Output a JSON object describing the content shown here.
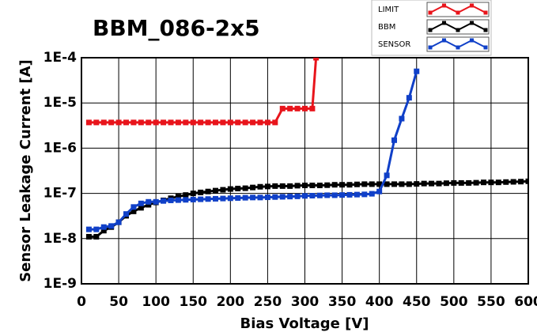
{
  "chart_data": {
    "type": "line",
    "title": "BBM_086-2x5",
    "x_label": "Bias Voltage [V]",
    "y_label": "Sensor Leakage Current [A]",
    "log_y": true,
    "grid": true,
    "legend": "top-right",
    "xlim": [
      0,
      600
    ],
    "xticks": [
      0,
      50,
      100,
      150,
      200,
      250,
      300,
      350,
      400,
      450,
      500,
      550,
      600
    ],
    "ylim": [
      1e-09,
      0.0001
    ],
    "yticks": [
      {
        "value": 1e-09,
        "label": "1E-9"
      },
      {
        "value": 1e-08,
        "label": "1E-8"
      },
      {
        "value": 1e-07,
        "label": "1E-7"
      },
      {
        "value": 1e-06,
        "label": "1E-6"
      },
      {
        "value": 1e-05,
        "label": "1E-5"
      },
      {
        "value": 0.0001,
        "label": "1E-4"
      }
    ],
    "series": [
      {
        "name": "LIMIT",
        "color": "#e8141b",
        "x": [
          10,
          20,
          30,
          40,
          50,
          60,
          70,
          80,
          90,
          100,
          110,
          120,
          130,
          140,
          150,
          160,
          170,
          180,
          190,
          200,
          210,
          220,
          230,
          240,
          250,
          260,
          270,
          280,
          290,
          300,
          310,
          315
        ],
        "values": [
          3.7e-06,
          3.7e-06,
          3.7e-06,
          3.7e-06,
          3.7e-06,
          3.7e-06,
          3.7e-06,
          3.7e-06,
          3.7e-06,
          3.7e-06,
          3.7e-06,
          3.7e-06,
          3.7e-06,
          3.7e-06,
          3.7e-06,
          3.7e-06,
          3.7e-06,
          3.7e-06,
          3.7e-06,
          3.7e-06,
          3.7e-06,
          3.7e-06,
          3.7e-06,
          3.7e-06,
          3.7e-06,
          3.7e-06,
          7.5e-06,
          7.5e-06,
          7.5e-06,
          7.5e-06,
          7.5e-06,
          0.0001
        ]
      },
      {
        "name": "BBM",
        "color": "#000000",
        "x": [
          10,
          20,
          30,
          40,
          50,
          60,
          70,
          80,
          90,
          100,
          110,
          120,
          130,
          140,
          150,
          160,
          170,
          180,
          190,
          200,
          210,
          220,
          230,
          240,
          250,
          260,
          270,
          280,
          290,
          300,
          310,
          320,
          330,
          340,
          350,
          360,
          370,
          380,
          390,
          400,
          410,
          420,
          430,
          440,
          450,
          460,
          470,
          480,
          490,
          500,
          510,
          520,
          530,
          540,
          550,
          560,
          570,
          580,
          590,
          600
        ],
        "values": [
          1.1e-08,
          1.1e-08,
          1.5e-08,
          1.8e-08,
          2.3e-08,
          3.2e-08,
          4e-08,
          4.8e-08,
          5.6e-08,
          6.3e-08,
          7e-08,
          7.8e-08,
          8.5e-08,
          9.2e-08,
          1e-07,
          1.05e-07,
          1.1e-07,
          1.15e-07,
          1.2e-07,
          1.25e-07,
          1.28e-07,
          1.3e-07,
          1.35e-07,
          1.4e-07,
          1.42e-07,
          1.45e-07,
          1.45e-07,
          1.45e-07,
          1.48e-07,
          1.5e-07,
          1.5e-07,
          1.5e-07,
          1.52e-07,
          1.55e-07,
          1.55e-07,
          1.55e-07,
          1.58e-07,
          1.6e-07,
          1.6e-07,
          1.6e-07,
          1.6e-07,
          1.6e-07,
          1.6e-07,
          1.6e-07,
          1.62e-07,
          1.65e-07,
          1.65e-07,
          1.65e-07,
          1.68e-07,
          1.7e-07,
          1.7e-07,
          1.7e-07,
          1.72e-07,
          1.75e-07,
          1.75e-07,
          1.75e-07,
          1.78e-07,
          1.8e-07,
          1.82e-07,
          1.85e-07
        ]
      },
      {
        "name": "SENSOR",
        "color": "#1040c8",
        "x": [
          10,
          20,
          30,
          40,
          50,
          60,
          70,
          80,
          90,
          100,
          110,
          120,
          130,
          140,
          150,
          160,
          170,
          180,
          190,
          200,
          210,
          220,
          230,
          240,
          250,
          260,
          270,
          280,
          290,
          300,
          310,
          320,
          330,
          340,
          350,
          360,
          370,
          380,
          390,
          400,
          410,
          420,
          430,
          440,
          450
        ],
        "values": [
          1.6e-08,
          1.6e-08,
          1.8e-08,
          1.9e-08,
          2.3e-08,
          3.5e-08,
          5e-08,
          6e-08,
          6.5e-08,
          6.5e-08,
          6.8e-08,
          7e-08,
          7.1e-08,
          7.2e-08,
          7.3e-08,
          7.4e-08,
          7.5e-08,
          7.6e-08,
          7.7e-08,
          7.8e-08,
          7.9e-08,
          8e-08,
          8.1e-08,
          8.1e-08,
          8.2e-08,
          8.3e-08,
          8.4e-08,
          8.5e-08,
          8.6e-08,
          8.8e-08,
          8.9e-08,
          9e-08,
          9.1e-08,
          9.1e-08,
          9.2e-08,
          9.3e-08,
          9.4e-08,
          9.5e-08,
          9.8e-08,
          1.1e-07,
          2.5e-07,
          1.5e-06,
          4.5e-06,
          1.3e-05,
          5e-05
        ]
      }
    ]
  }
}
